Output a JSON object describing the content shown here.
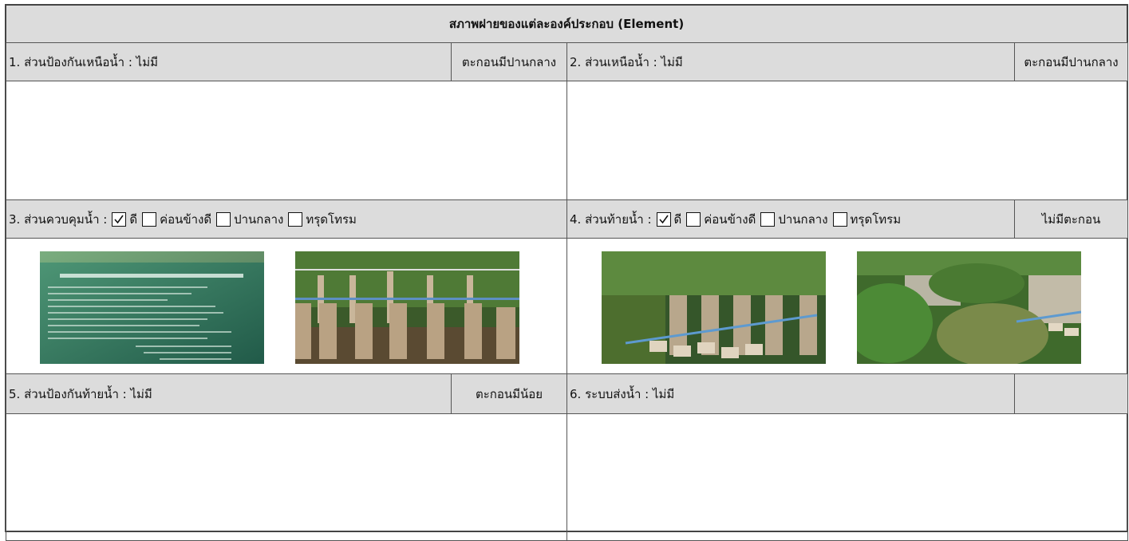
{
  "header": {
    "title": "สภาพฝายของแต่ละองค์ประกอบ (Element)"
  },
  "sections": [
    {
      "label": "1. ส่วนป้องกันเหนือน้ำ : ไม่มี",
      "tag": "ตะกอนมีปานกลาง"
    },
    {
      "label": "2. ส่วนเหนือน้ำ : ไม่มี",
      "tag": "ตะกอนมีปานกลาง"
    },
    {
      "label": "3. ส่วนควบคุมน้ำ :",
      "options": [
        {
          "text": "ดี",
          "checked": true
        },
        {
          "text": "ค่อนข้างดี",
          "checked": false
        },
        {
          "text": "ปานกลาง",
          "checked": false
        },
        {
          "text": "ทรุดโทรม",
          "checked": false
        }
      ]
    },
    {
      "label": "4. ส่วนท้ายน้ำ :",
      "options": [
        {
          "text": "ดี",
          "checked": true
        },
        {
          "text": "ค่อนข้างดี",
          "checked": false
        },
        {
          "text": "ปานกลาง",
          "checked": false
        },
        {
          "text": "ทรุดโทรม",
          "checked": false
        }
      ],
      "tag": "ไม่มีตะกอน"
    },
    {
      "label": "5. ส่วนป้องกันท้ายน้ำ : ไม่มี",
      "tag": "ตะกอนมีน้อย"
    },
    {
      "label": "6. ระบบส่งน้ำ : ไม่มี"
    }
  ]
}
